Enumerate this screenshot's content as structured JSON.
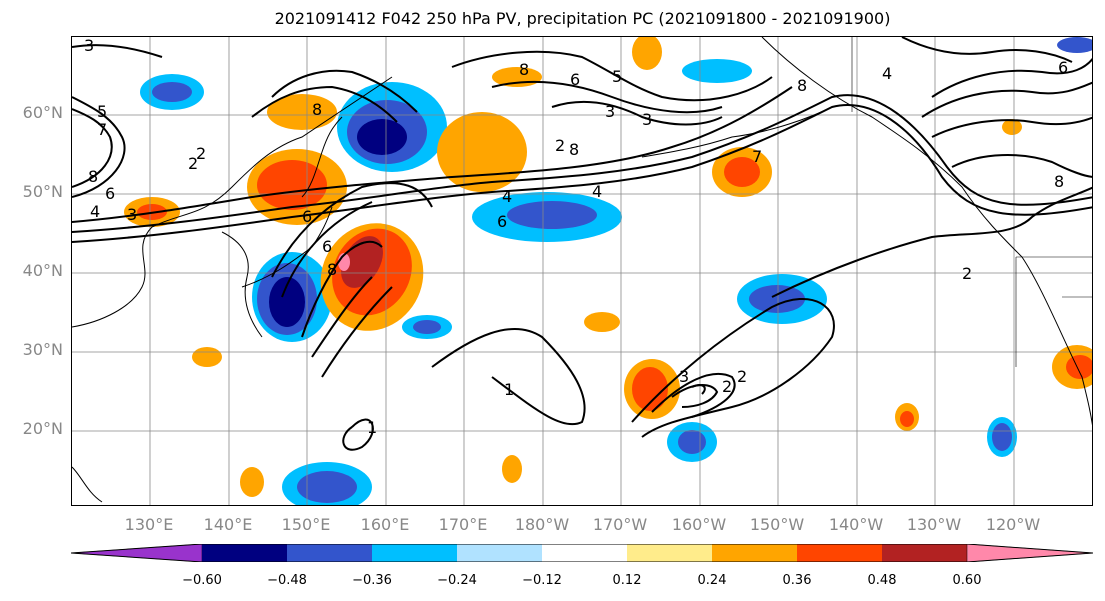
{
  "title": "2021091412 F042 250 hPa PV, precipitation PC (2021091800 - 2021091900)",
  "map": {
    "lat_labels": [
      "60°N",
      "50°N",
      "40°N",
      "30°N",
      "20°N"
    ],
    "lon_labels": [
      "130°E",
      "140°E",
      "150°E",
      "160°E",
      "170°E",
      "180°W",
      "170°W",
      "160°W",
      "150°W",
      "140°W",
      "130°W",
      "120°W"
    ],
    "contour_labels": [
      "3",
      "5",
      "7",
      "8",
      "6",
      "4",
      "3",
      "2",
      "8",
      "6",
      "4",
      "5",
      "6",
      "8",
      "3",
      "8",
      "2",
      "6",
      "1",
      "1",
      "2",
      "2",
      "3",
      "8",
      "4",
      "7",
      "6",
      "8",
      "3",
      "2",
      "2",
      "4",
      "6",
      "8"
    ],
    "palette": {
      "neg_extreme": "#9933cc",
      "neg_060": "#000080",
      "neg_048": "#3355cc",
      "neg_036": "#00bfff",
      "neg_024": "#b0e2ff",
      "neutral": "#ffffff",
      "pos_012": "#ffec8b",
      "pos_024": "#ffa500",
      "pos_036": "#ff4500",
      "pos_048": "#b22222",
      "pos_extreme": "#ff88aa"
    }
  },
  "colorbar": {
    "ticks": [
      "−0.60",
      "−0.48",
      "−0.36",
      "−0.24",
      "−0.12",
      "0.12",
      "0.24",
      "0.36",
      "0.48",
      "0.60"
    ],
    "colors": [
      "#9933cc",
      "#000080",
      "#3355cc",
      "#00bfff",
      "#b0e2ff",
      "#ffffff",
      "#ffec8b",
      "#ffa500",
      "#ff4500",
      "#b22222",
      "#ff88aa"
    ]
  }
}
